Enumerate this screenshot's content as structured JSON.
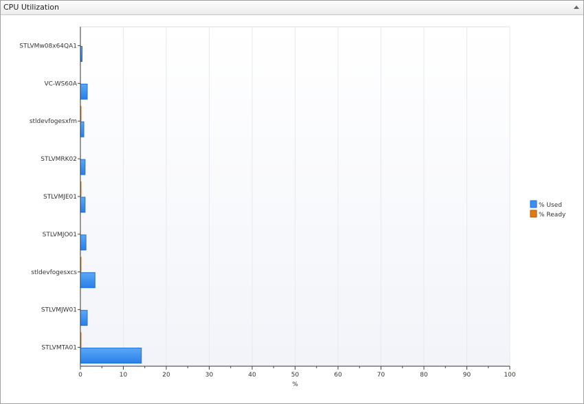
{
  "panel": {
    "title": "CPU Utilization"
  },
  "chart_data": {
    "type": "bar",
    "orientation": "horizontal",
    "categories": [
      "STLVMw08x64QA1",
      "VC-WS60A",
      "stldevfogesxfm",
      "STLVMRK02",
      "STLVMJE01",
      "STLVMJO01",
      "stldevfogesxcs",
      "STLVMJW01",
      "STLVMTA01"
    ],
    "series": [
      {
        "name": "% Used",
        "color": "#3d8ff0",
        "values": [
          0.4,
          1.6,
          0.8,
          1.1,
          1.1,
          1.3,
          3.4,
          1.6,
          14.2
        ]
      },
      {
        "name": "% Ready",
        "color": "#e07a10",
        "values": [
          0,
          0,
          0.2,
          0,
          0.2,
          0,
          0.2,
          0,
          0.2
        ]
      }
    ],
    "xlabel": "%",
    "xlim": [
      0,
      100
    ],
    "xticks": [
      0,
      10,
      20,
      30,
      40,
      50,
      60,
      70,
      80,
      90,
      100
    ],
    "grid": true,
    "legend": "right"
  }
}
